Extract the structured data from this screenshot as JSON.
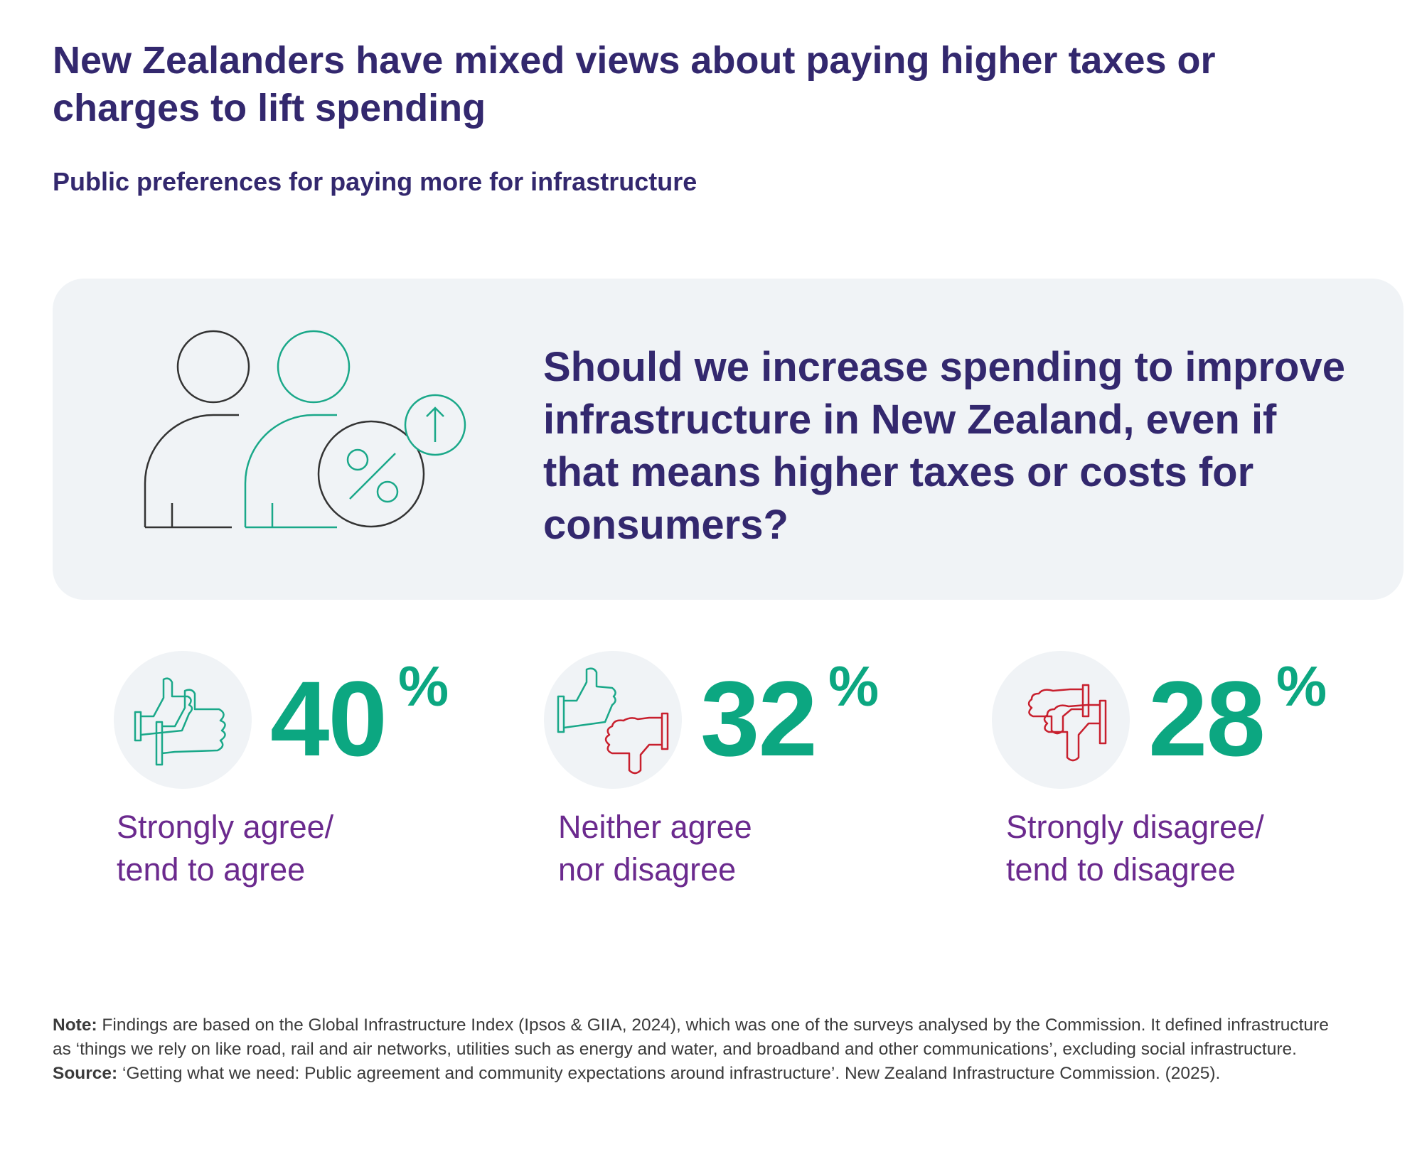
{
  "title": "New Zealanders have mixed views about paying higher taxes or charges to lift spending",
  "subtitle": "Public preferences for paying more for infrastructure",
  "question": "Should we increase spending to improve infrastructure in New Zealand, even if that means higher taxes or costs for consumers?",
  "colors": {
    "title": "#33286e",
    "value": "#0ca781",
    "label": "#6b2a8e",
    "agree_icon": "#1aa889",
    "disagree_icon": "#c8202e",
    "panel_bg": "#f0f3f6"
  },
  "icons": {
    "panel": "people-percent-up-icon",
    "agree": "thumbs-up-icon",
    "neutral": "thumbs-up-down-icon",
    "disagree": "thumbs-down-icon"
  },
  "chart_data": {
    "type": "table",
    "categories": [
      "Strongly agree/ tend to agree",
      "Neither agree nor disagree",
      "Strongly disagree/ tend to disagree"
    ],
    "values": [
      40,
      32,
      28
    ],
    "unit": "%"
  },
  "stats": [
    {
      "value": "40",
      "unit": "%",
      "label_line1": "Strongly agree/",
      "label_line2": "tend to agree"
    },
    {
      "value": "32",
      "unit": "%",
      "label_line1": "Neither agree",
      "label_line2": "nor disagree"
    },
    {
      "value": "28",
      "unit": "%",
      "label_line1": "Strongly disagree/",
      "label_line2": "tend to disagree"
    }
  ],
  "note": {
    "note_label": "Note:",
    "note_text": " Findings are based on the Global Infrastructure Index (Ipsos & GIIA, 2024), which was one of the surveys analysed by the Commission. It defined infrastructure as ‘things we rely on like road, rail and air networks, utilities such as energy and water, and broadband and other communications’, excluding social infrastructure. ",
    "source_label": "Source:",
    "source_text": " ‘Getting what we need: Public agreement and community expectations around infrastructure’. New Zealand Infrastructure Commission. (2025)."
  }
}
